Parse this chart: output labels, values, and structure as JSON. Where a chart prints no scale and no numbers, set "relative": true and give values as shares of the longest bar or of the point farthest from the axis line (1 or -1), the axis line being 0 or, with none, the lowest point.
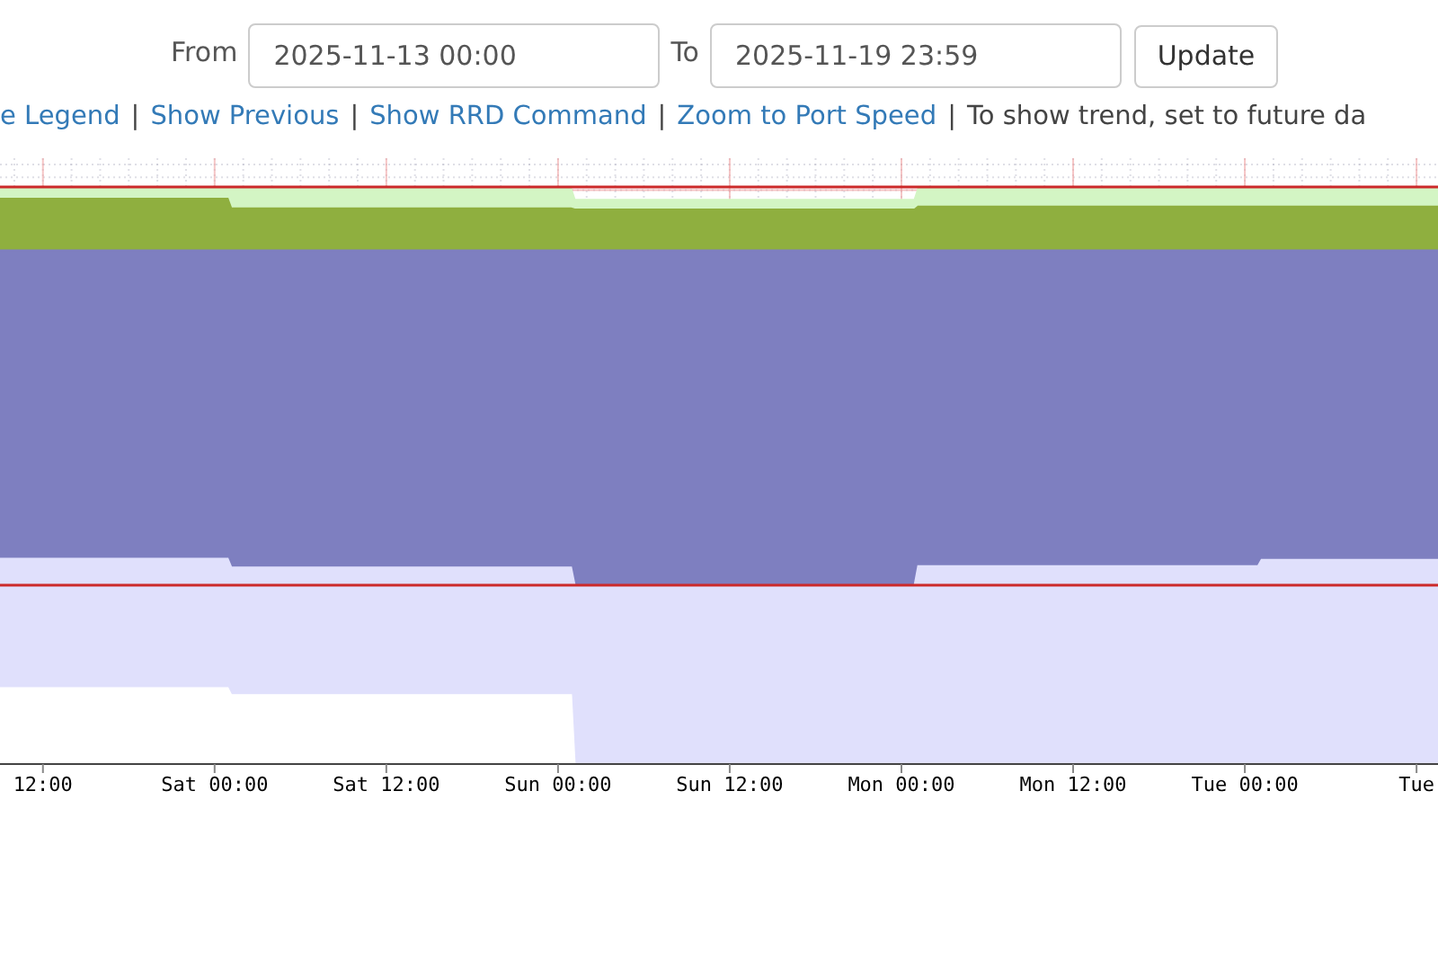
{
  "chart_data": {
    "type": "area",
    "relative": true,
    "annotations": [
      "From",
      "2025-11-13 00:00",
      "To",
      "2025-11-19 23:59",
      "Update",
      "e Legend",
      "|",
      "Show Previous",
      "|",
      "Show RRD Command",
      "|",
      "Zoom to Port Speed",
      "|",
      "To show trend, set to future da"
    ],
    "x": [
      "2025-11-14T09:00",
      "2025-11-15T00:55",
      "2025-11-15T01:10",
      "2025-11-16T00:55",
      "2025-11-16T01:10",
      "2025-11-17T00:55",
      "2025-11-17T01:10",
      "2025-11-18T00:55",
      "2025-11-18T01:10",
      "2025-11-18T13:30"
    ],
    "xlim": [
      "2025-11-14T09:00",
      "2025-11-18T13:30"
    ],
    "xticks": [
      {
        "value": "2025-11-14T12:00",
        "label": "12:00"
      },
      {
        "value": "2025-11-15T00:00",
        "label": "Sat 00:00"
      },
      {
        "value": "2025-11-15T12:00",
        "label": "Sat 12:00"
      },
      {
        "value": "2025-11-16T00:00",
        "label": "Sun 00:00"
      },
      {
        "value": "2025-11-16T12:00",
        "label": "Sun 12:00"
      },
      {
        "value": "2025-11-17T00:00",
        "label": "Mon 00:00"
      },
      {
        "value": "2025-11-17T12:00",
        "label": "Mon 12:00"
      },
      {
        "value": "2025-11-18T00:00",
        "label": "Tue 00:00"
      },
      {
        "value": "2025-11-18T12:00",
        "label": "Tue"
      }
    ],
    "series": [
      {
        "color": "#d3f5c4",
        "values": [
          1,
          1,
          1,
          1,
          0.981,
          0.981,
          1,
          1,
          1,
          1
        ]
      },
      {
        "color": "#8faf3f",
        "values": [
          0.983,
          0.983,
          0.966,
          0.966,
          0.964,
          0.964,
          0.969,
          0.969,
          0.969,
          0.969
        ]
      },
      {
        "color": "#7e7fc0",
        "values": [
          0.893,
          0.893,
          0.893,
          0.893,
          0.893,
          0.893,
          0.893,
          0.893,
          0.893,
          0.893
        ]
      },
      {
        "color": "#e0e0fc",
        "values": [
          0.357,
          0.357,
          0.342,
          0.342,
          0.311,
          0.311,
          0.344,
          0.344,
          0.355,
          0.355
        ]
      },
      {
        "color": "#ffffff",
        "values": [
          0.132,
          0.132,
          0.12,
          0.12,
          0,
          0,
          0,
          0,
          0,
          0
        ]
      }
    ],
    "grid": true,
    "ref_lines": [
      {
        "axis": "y",
        "value": 1.003,
        "color": "#cc2a2a"
      },
      {
        "axis": "y",
        "value": 0.311,
        "color": "#cc2a2a"
      }
    ]
  }
}
